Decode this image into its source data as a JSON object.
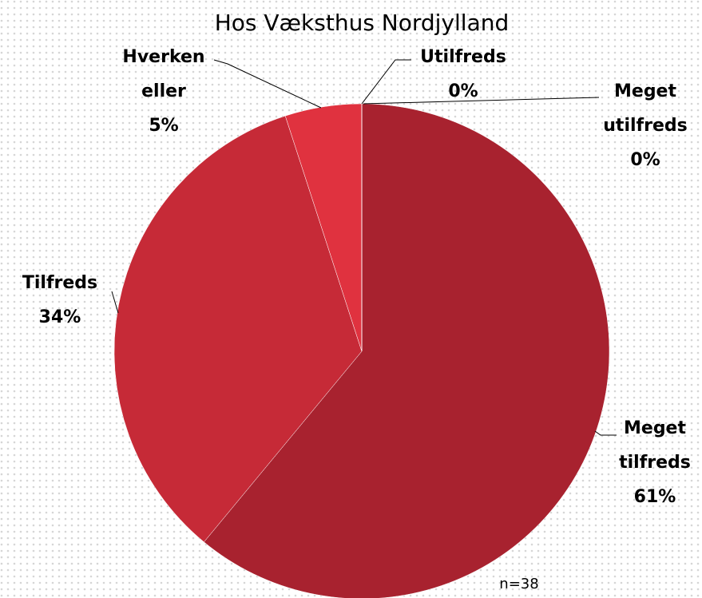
{
  "chart_data": {
    "type": "pie",
    "title": "Hos Væksthus Nordjylland",
    "categories": [
      "Meget tilfreds",
      "Tilfreds",
      "Hverken eller",
      "Utilfreds",
      "Meget utilfreds"
    ],
    "values": [
      61,
      34,
      5,
      0,
      0
    ],
    "value_labels": [
      "61%",
      "34%",
      "5%",
      "0%",
      "0%"
    ],
    "colors": [
      "#a8222f",
      "#c62a37",
      "#e0323f",
      "#e85560",
      "#ef7a82"
    ],
    "annotation": "n=38"
  }
}
